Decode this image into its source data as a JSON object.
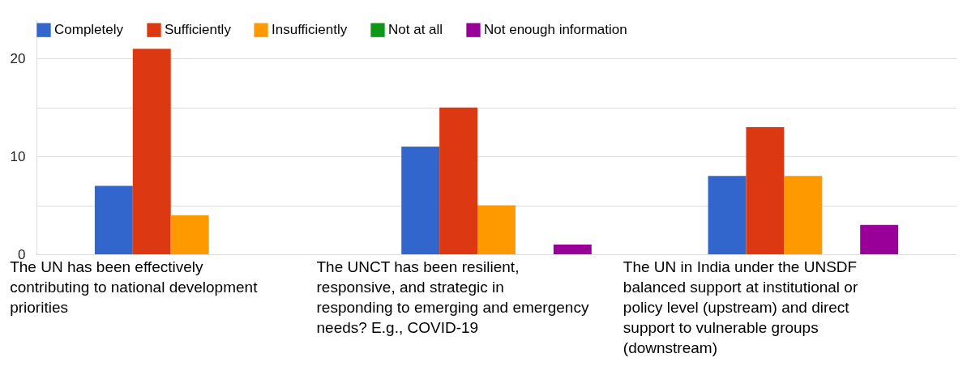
{
  "chart_data": {
    "type": "bar",
    "categories": [
      "The UN has been effectively contributing to national development priorities",
      "The UNCT has been resilient, responsive, and strategic in responding to emerging and emergency needs? E.g., COVID-19",
      "The UN in India under the UNSDF balanced support at institutional or policy level (upstream) and direct support to vulnerable groups (downstream)"
    ],
    "series": [
      {
        "name": "Completely",
        "color": "#3366cc",
        "values": [
          7,
          11,
          8
        ]
      },
      {
        "name": "Sufficiently",
        "color": "#dc3912",
        "values": [
          21,
          15,
          13
        ]
      },
      {
        "name": "Insufficiently",
        "color": "#ff9900",
        "values": [
          4,
          5,
          8
        ]
      },
      {
        "name": "Not at all",
        "color": "#109618",
        "values": [
          0,
          0,
          0
        ]
      },
      {
        "name": "Not enough information",
        "color": "#990099",
        "values": [
          0,
          1,
          3
        ]
      }
    ],
    "ylim": [
      0,
      24
    ],
    "yticks": [
      0,
      {
        "value": 5,
        "label": null
      },
      10,
      {
        "value": 15,
        "label": null
      },
      20
    ],
    "grid": "y",
    "legend": "top"
  }
}
